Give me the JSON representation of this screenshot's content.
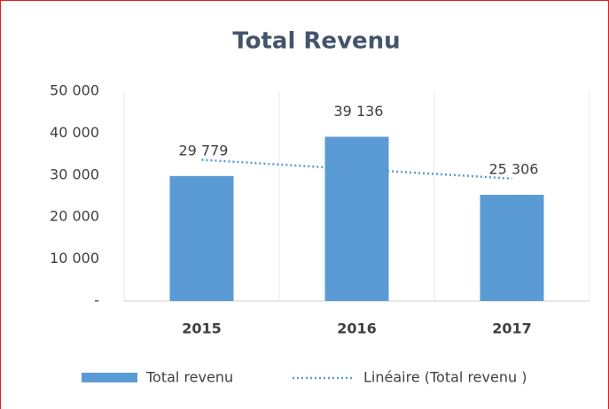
{
  "chart_data": {
    "type": "bar",
    "title": "Total Revenu",
    "categories": [
      "2015",
      "2016",
      "2017"
    ],
    "series": [
      {
        "name": "Total revenu",
        "color": "#5b9bd5",
        "values": [
          29779,
          39136,
          25306
        ],
        "value_labels": [
          "29 779",
          "39 136",
          "25 306"
        ]
      }
    ],
    "trendline": {
      "name": "Linéaire (Total revenu )",
      "color": "#5b9bd5"
    },
    "ylim": [
      0,
      50000
    ],
    "yticks": [
      {
        "value": 0,
        "label": "-"
      },
      {
        "value": 10000,
        "label": "10 000"
      },
      {
        "value": 20000,
        "label": "20 000"
      },
      {
        "value": 30000,
        "label": "30 000"
      },
      {
        "value": 40000,
        "label": "40 000"
      },
      {
        "value": 50000,
        "label": "50 000"
      }
    ],
    "legend": "bottom"
  }
}
